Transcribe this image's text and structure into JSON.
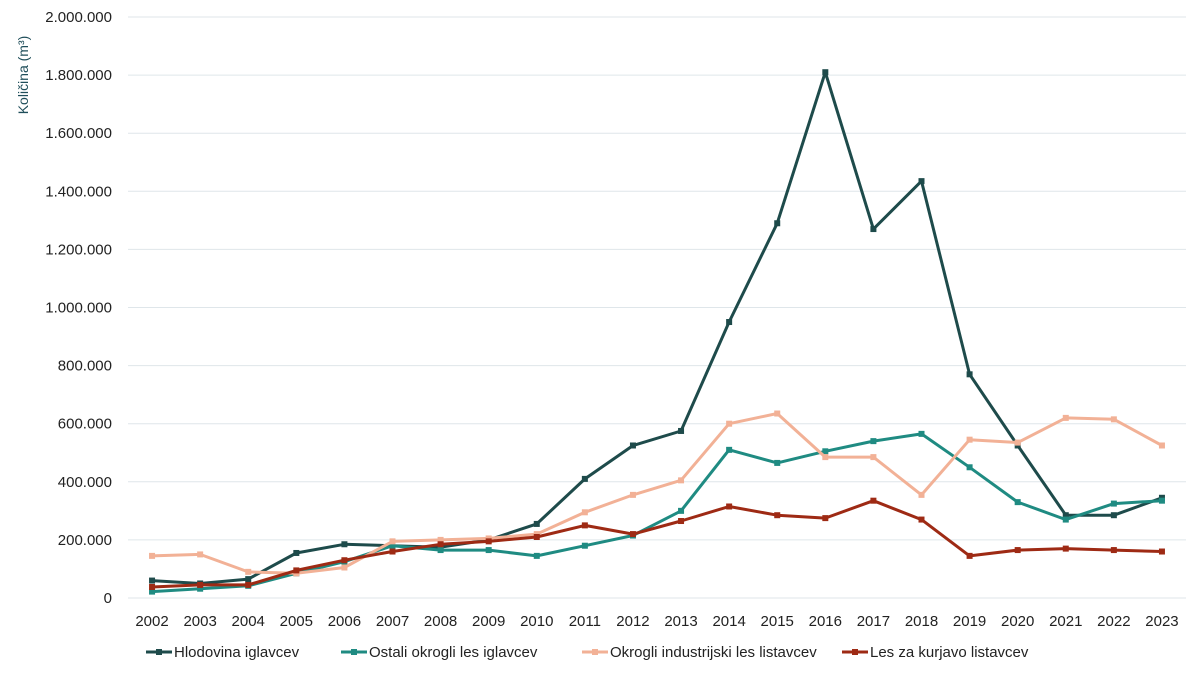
{
  "chart_data": {
    "type": "line",
    "title": "",
    "xlabel": "",
    "ylabel": "Količina (m³)",
    "ylim": [
      0,
      2000000
    ],
    "y_ticks": [
      0,
      200000,
      400000,
      600000,
      800000,
      1000000,
      1200000,
      1400000,
      1600000,
      1800000,
      2000000
    ],
    "y_tick_labels": [
      "0",
      "200.000",
      "400.000",
      "600.000",
      "800.000",
      "1.000.000",
      "1.200.000",
      "1.400.000",
      "1.600.000",
      "1.800.000",
      "2.000.000"
    ],
    "grid": true,
    "legend_position": "bottom",
    "categories": [
      "2002",
      "2003",
      "2004",
      "2005",
      "2006",
      "2007",
      "2008",
      "2009",
      "2010",
      "2011",
      "2012",
      "2013",
      "2014",
      "2015",
      "2016",
      "2017",
      "2018",
      "2019",
      "2020",
      "2021",
      "2022",
      "2023"
    ],
    "series": [
      {
        "name": "Hlodovina iglavcev",
        "color": "#1e4b4b",
        "values": [
          60000,
          50000,
          65000,
          155000,
          185000,
          180000,
          175000,
          200000,
          255000,
          410000,
          525000,
          575000,
          950000,
          1290000,
          1810000,
          1270000,
          1435000,
          770000,
          525000,
          285000,
          285000,
          345000
        ]
      },
      {
        "name": "Ostali okrogli les iglavcev",
        "color": "#1f8b82",
        "values": [
          22000,
          32000,
          42000,
          85000,
          125000,
          180000,
          165000,
          165000,
          145000,
          180000,
          215000,
          300000,
          510000,
          465000,
          505000,
          540000,
          565000,
          450000,
          330000,
          270000,
          325000,
          335000
        ]
      },
      {
        "name": "Okrogli industrijski les listavcev",
        "color": "#f2b196",
        "values": [
          145000,
          150000,
          90000,
          85000,
          105000,
          195000,
          200000,
          205000,
          220000,
          295000,
          355000,
          405000,
          600000,
          635000,
          485000,
          485000,
          355000,
          545000,
          535000,
          620000,
          615000,
          525000
        ]
      },
      {
        "name": "Les za kurjavo listavcev",
        "color": "#9e2a14",
        "values": [
          38000,
          45000,
          45000,
          95000,
          130000,
          160000,
          185000,
          195000,
          210000,
          250000,
          220000,
          265000,
          315000,
          285000,
          275000,
          335000,
          270000,
          145000,
          165000,
          170000,
          165000,
          160000
        ]
      }
    ]
  }
}
